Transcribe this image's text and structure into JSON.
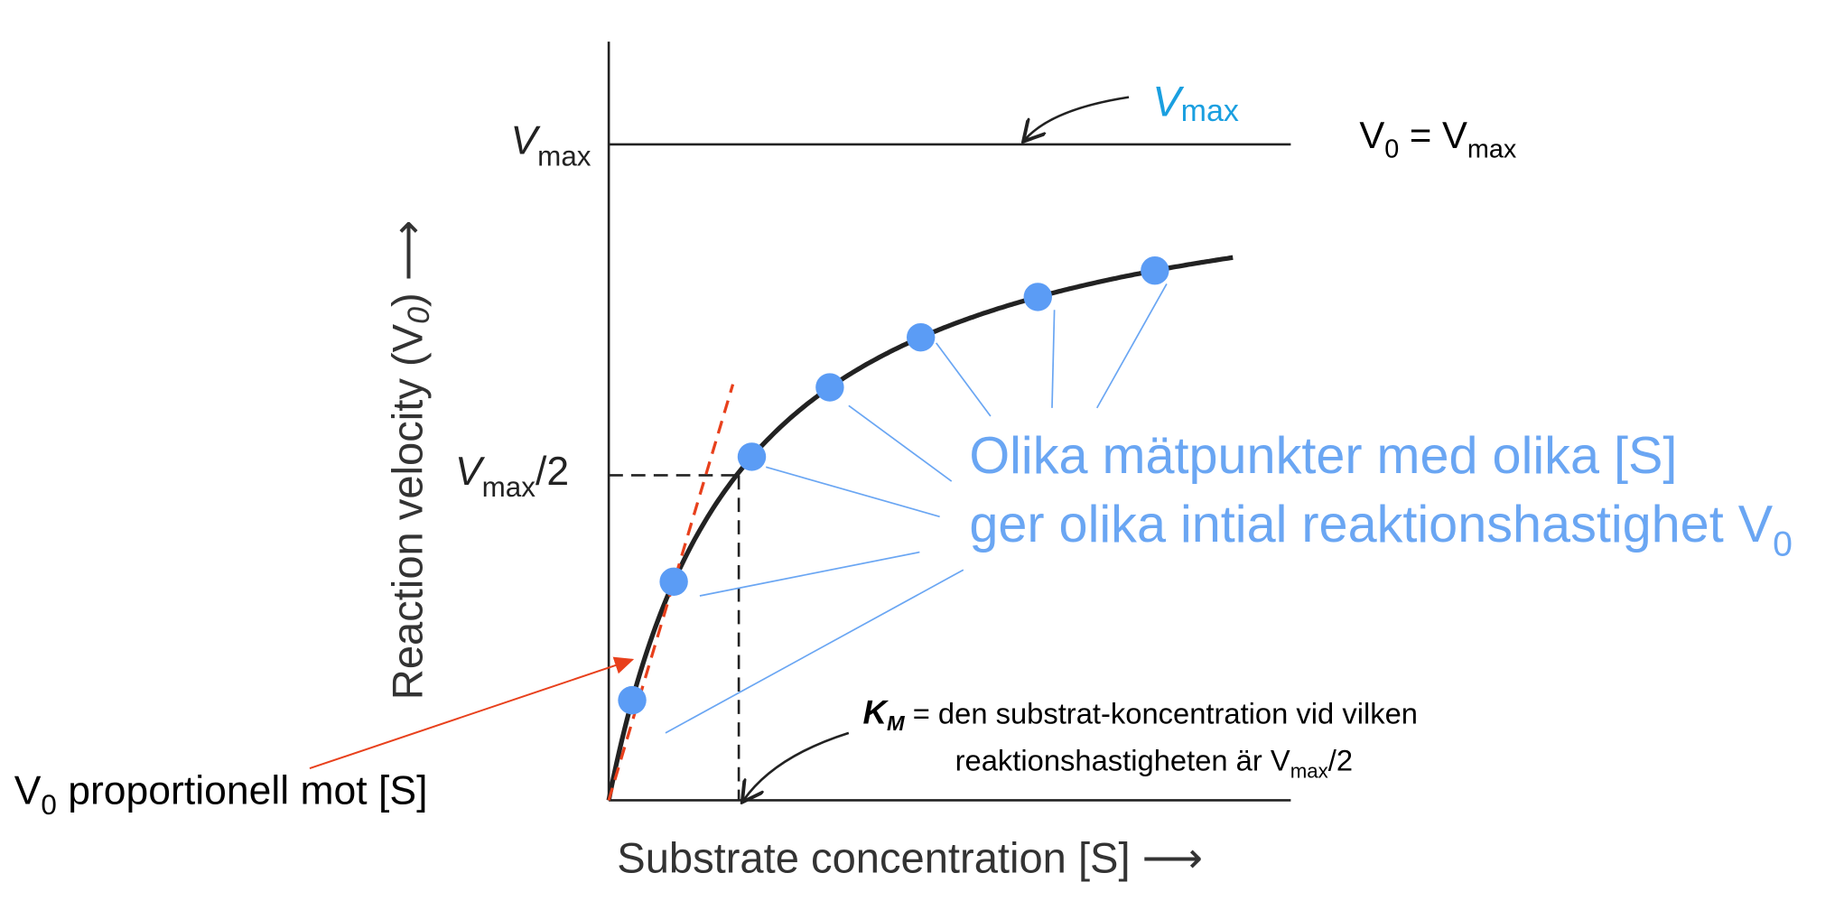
{
  "colors": {
    "axis": "#222222",
    "curve": "#222222",
    "points": "#5b9cf5",
    "annotation_blue": "#6aa6f3",
    "vmax_label": "#1a9fe0",
    "tangent": "#e8401c"
  },
  "labels": {
    "y_axis": "Reaction velocity (V",
    "y_axis_sub": "0",
    "y_axis_tail": ") ⟶",
    "x_axis": "Substrate concentration [S]  ⟶",
    "vmax_tick_main": "V",
    "vmax_tick_sub": "max",
    "half_tick_main": "V",
    "half_tick_sub": "max",
    "half_tick_tail": "/2",
    "vmax_callout_main": "V",
    "vmax_callout_sub": "max",
    "eq_v": "V",
    "eq_v_sub": "0",
    "eq_mid": " = V",
    "eq_sub": "max",
    "points_line1": "Olika mätpunkter med olika [S]",
    "points_line2": "ger olika intial reaktionshastighet V",
    "points_line2_sub": "0",
    "km_symbol": "K",
    "km_symbol_sub": "M",
    "km_line1": " = den substrat-koncentration vid vilken",
    "km_line2": "reaktionshastigheten är V",
    "km_line2_sub": "max",
    "km_line2_tail": "/2",
    "prop_v": "V",
    "prop_sub": "0",
    "prop_text": " proportionell mot [S]"
  },
  "chart_data": {
    "type": "scatter",
    "model": "Michaelis-Menten",
    "x_unit": "Km",
    "y_unit": "Vmax",
    "points": [
      {
        "s": 0.18,
        "v": 0.15
      },
      {
        "s": 0.5,
        "v": 0.33
      },
      {
        "s": 1.1,
        "v": 0.52
      },
      {
        "s": 1.7,
        "v": 0.63
      },
      {
        "s": 2.4,
        "v": 0.71
      },
      {
        "s": 3.3,
        "v": 0.77
      },
      {
        "s": 4.2,
        "v": 0.81
      }
    ],
    "reference_lines": [
      "Vmax",
      "Vmax/2",
      "Km"
    ],
    "grid": false
  }
}
